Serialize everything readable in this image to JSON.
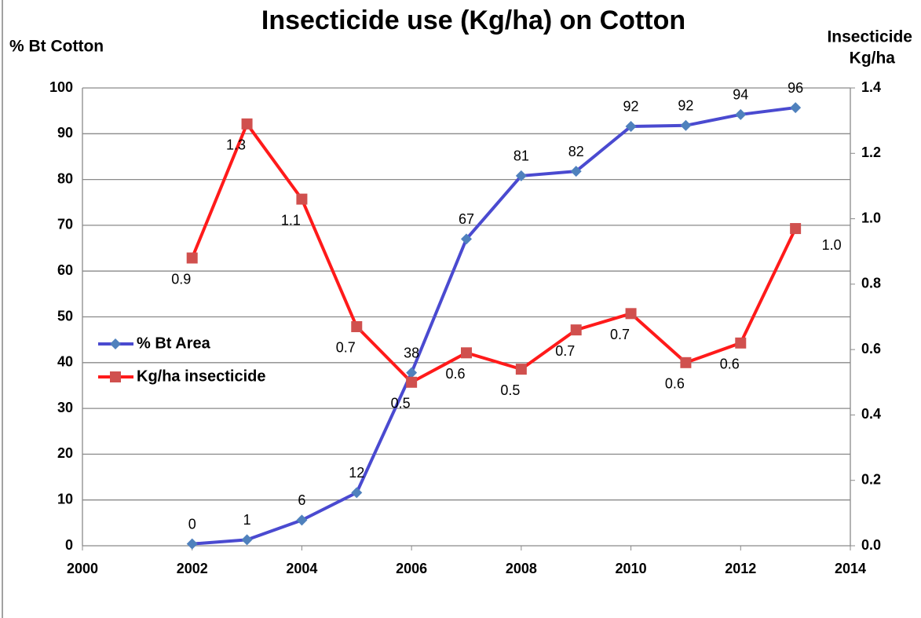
{
  "chart_data": {
    "type": "line",
    "title": "Insecticide use (Kg/ha) on Cotton",
    "ylabel": "% Bt Cotton",
    "y2label": [
      "Insecticide",
      "Kg/ha"
    ],
    "x": [
      2002,
      2003,
      2004,
      2005,
      2006,
      2007,
      2008,
      2009,
      2010,
      2011,
      2012,
      2013
    ],
    "xlim": [
      2000,
      2014
    ],
    "xticks": [
      2000,
      2002,
      2004,
      2006,
      2008,
      2010,
      2012,
      2014
    ],
    "ylim": [
      0,
      100
    ],
    "yticks": [
      0,
      10,
      20,
      30,
      40,
      50,
      60,
      70,
      80,
      90,
      100
    ],
    "y2lim": [
      0,
      1.4
    ],
    "y2ticks": [
      {
        "value": 0,
        "label": "0.0"
      },
      0.2,
      0.4,
      0.6,
      0.8,
      {
        "value": 1,
        "label": "1.0"
      },
      1.2,
      1.4
    ],
    "grid": true,
    "legend": "left",
    "series": [
      {
        "name": "% Bt Area",
        "color": "#4a4ad0",
        "marker": "diamond",
        "values": [
          0.4,
          1.3,
          5.6,
          11.6,
          37.8,
          67,
          80.8,
          81.8,
          91.6,
          91.8,
          94.2,
          95.7
        ],
        "value_labels": [
          "0",
          "1",
          "6",
          "12",
          "38",
          "67",
          "81",
          "82",
          "92",
          "92",
          "94",
          "96"
        ]
      },
      {
        "name": "Kg/ha insecticide",
        "color": "#ff1a1a",
        "marker": "square",
        "axis": "y2",
        "values": [
          0.88,
          1.29,
          1.06,
          0.67,
          0.5,
          0.59,
          0.54,
          0.66,
          0.71,
          0.56,
          0.62,
          0.97
        ],
        "value_labels": [
          "0.9",
          "1.3",
          "1.1",
          "0.7",
          "0.5",
          "0.6",
          "0.5",
          "0.7",
          "0.7",
          "0.6",
          "0.6",
          "1.0"
        ]
      }
    ]
  }
}
